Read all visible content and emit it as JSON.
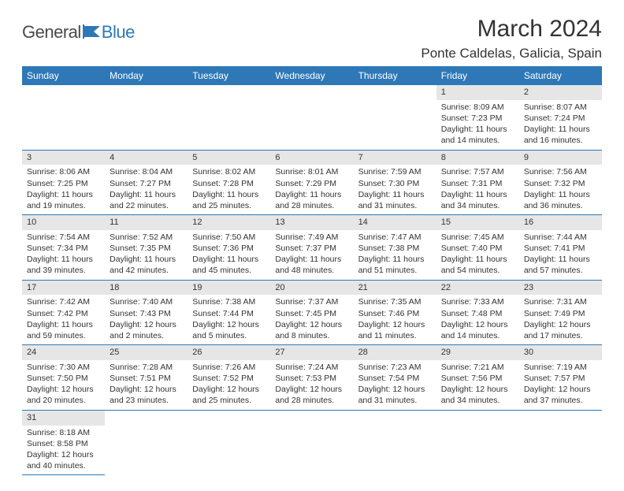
{
  "logo": {
    "part1": "General",
    "part2": "Blue",
    "icon_color": "#2e78b7",
    "text1_color": "#4a4a4a"
  },
  "title": "March 2024",
  "location": "Ponte Caldelas, Galicia, Spain",
  "header_bg": "#2e78b7",
  "daynum_bg": "#e6e6e6",
  "border_color": "#2e78b7",
  "title_fontsize": 30,
  "location_fontsize": 17,
  "dayheader_fontsize": 12,
  "cell_fontsize": 10.5,
  "weekdays": [
    "Sunday",
    "Monday",
    "Tuesday",
    "Wednesday",
    "Thursday",
    "Friday",
    "Saturday"
  ],
  "weeks": [
    [
      null,
      null,
      null,
      null,
      null,
      {
        "n": "1",
        "sunrise": "Sunrise: 8:09 AM",
        "sunset": "Sunset: 7:23 PM",
        "day": "Daylight: 11 hours and 14 minutes."
      },
      {
        "n": "2",
        "sunrise": "Sunrise: 8:07 AM",
        "sunset": "Sunset: 7:24 PM",
        "day": "Daylight: 11 hours and 16 minutes."
      }
    ],
    [
      {
        "n": "3",
        "sunrise": "Sunrise: 8:06 AM",
        "sunset": "Sunset: 7:25 PM",
        "day": "Daylight: 11 hours and 19 minutes."
      },
      {
        "n": "4",
        "sunrise": "Sunrise: 8:04 AM",
        "sunset": "Sunset: 7:27 PM",
        "day": "Daylight: 11 hours and 22 minutes."
      },
      {
        "n": "5",
        "sunrise": "Sunrise: 8:02 AM",
        "sunset": "Sunset: 7:28 PM",
        "day": "Daylight: 11 hours and 25 minutes."
      },
      {
        "n": "6",
        "sunrise": "Sunrise: 8:01 AM",
        "sunset": "Sunset: 7:29 PM",
        "day": "Daylight: 11 hours and 28 minutes."
      },
      {
        "n": "7",
        "sunrise": "Sunrise: 7:59 AM",
        "sunset": "Sunset: 7:30 PM",
        "day": "Daylight: 11 hours and 31 minutes."
      },
      {
        "n": "8",
        "sunrise": "Sunrise: 7:57 AM",
        "sunset": "Sunset: 7:31 PM",
        "day": "Daylight: 11 hours and 34 minutes."
      },
      {
        "n": "9",
        "sunrise": "Sunrise: 7:56 AM",
        "sunset": "Sunset: 7:32 PM",
        "day": "Daylight: 11 hours and 36 minutes."
      }
    ],
    [
      {
        "n": "10",
        "sunrise": "Sunrise: 7:54 AM",
        "sunset": "Sunset: 7:34 PM",
        "day": "Daylight: 11 hours and 39 minutes."
      },
      {
        "n": "11",
        "sunrise": "Sunrise: 7:52 AM",
        "sunset": "Sunset: 7:35 PM",
        "day": "Daylight: 11 hours and 42 minutes."
      },
      {
        "n": "12",
        "sunrise": "Sunrise: 7:50 AM",
        "sunset": "Sunset: 7:36 PM",
        "day": "Daylight: 11 hours and 45 minutes."
      },
      {
        "n": "13",
        "sunrise": "Sunrise: 7:49 AM",
        "sunset": "Sunset: 7:37 PM",
        "day": "Daylight: 11 hours and 48 minutes."
      },
      {
        "n": "14",
        "sunrise": "Sunrise: 7:47 AM",
        "sunset": "Sunset: 7:38 PM",
        "day": "Daylight: 11 hours and 51 minutes."
      },
      {
        "n": "15",
        "sunrise": "Sunrise: 7:45 AM",
        "sunset": "Sunset: 7:40 PM",
        "day": "Daylight: 11 hours and 54 minutes."
      },
      {
        "n": "16",
        "sunrise": "Sunrise: 7:44 AM",
        "sunset": "Sunset: 7:41 PM",
        "day": "Daylight: 11 hours and 57 minutes."
      }
    ],
    [
      {
        "n": "17",
        "sunrise": "Sunrise: 7:42 AM",
        "sunset": "Sunset: 7:42 PM",
        "day": "Daylight: 11 hours and 59 minutes."
      },
      {
        "n": "18",
        "sunrise": "Sunrise: 7:40 AM",
        "sunset": "Sunset: 7:43 PM",
        "day": "Daylight: 12 hours and 2 minutes."
      },
      {
        "n": "19",
        "sunrise": "Sunrise: 7:38 AM",
        "sunset": "Sunset: 7:44 PM",
        "day": "Daylight: 12 hours and 5 minutes."
      },
      {
        "n": "20",
        "sunrise": "Sunrise: 7:37 AM",
        "sunset": "Sunset: 7:45 PM",
        "day": "Daylight: 12 hours and 8 minutes."
      },
      {
        "n": "21",
        "sunrise": "Sunrise: 7:35 AM",
        "sunset": "Sunset: 7:46 PM",
        "day": "Daylight: 12 hours and 11 minutes."
      },
      {
        "n": "22",
        "sunrise": "Sunrise: 7:33 AM",
        "sunset": "Sunset: 7:48 PM",
        "day": "Daylight: 12 hours and 14 minutes."
      },
      {
        "n": "23",
        "sunrise": "Sunrise: 7:31 AM",
        "sunset": "Sunset: 7:49 PM",
        "day": "Daylight: 12 hours and 17 minutes."
      }
    ],
    [
      {
        "n": "24",
        "sunrise": "Sunrise: 7:30 AM",
        "sunset": "Sunset: 7:50 PM",
        "day": "Daylight: 12 hours and 20 minutes."
      },
      {
        "n": "25",
        "sunrise": "Sunrise: 7:28 AM",
        "sunset": "Sunset: 7:51 PM",
        "day": "Daylight: 12 hours and 23 minutes."
      },
      {
        "n": "26",
        "sunrise": "Sunrise: 7:26 AM",
        "sunset": "Sunset: 7:52 PM",
        "day": "Daylight: 12 hours and 25 minutes."
      },
      {
        "n": "27",
        "sunrise": "Sunrise: 7:24 AM",
        "sunset": "Sunset: 7:53 PM",
        "day": "Daylight: 12 hours and 28 minutes."
      },
      {
        "n": "28",
        "sunrise": "Sunrise: 7:23 AM",
        "sunset": "Sunset: 7:54 PM",
        "day": "Daylight: 12 hours and 31 minutes."
      },
      {
        "n": "29",
        "sunrise": "Sunrise: 7:21 AM",
        "sunset": "Sunset: 7:56 PM",
        "day": "Daylight: 12 hours and 34 minutes."
      },
      {
        "n": "30",
        "sunrise": "Sunrise: 7:19 AM",
        "sunset": "Sunset: 7:57 PM",
        "day": "Daylight: 12 hours and 37 minutes."
      }
    ],
    [
      {
        "n": "31",
        "sunrise": "Sunrise: 8:18 AM",
        "sunset": "Sunset: 8:58 PM",
        "day": "Daylight: 12 hours and 40 minutes."
      },
      null,
      null,
      null,
      null,
      null,
      null
    ]
  ]
}
